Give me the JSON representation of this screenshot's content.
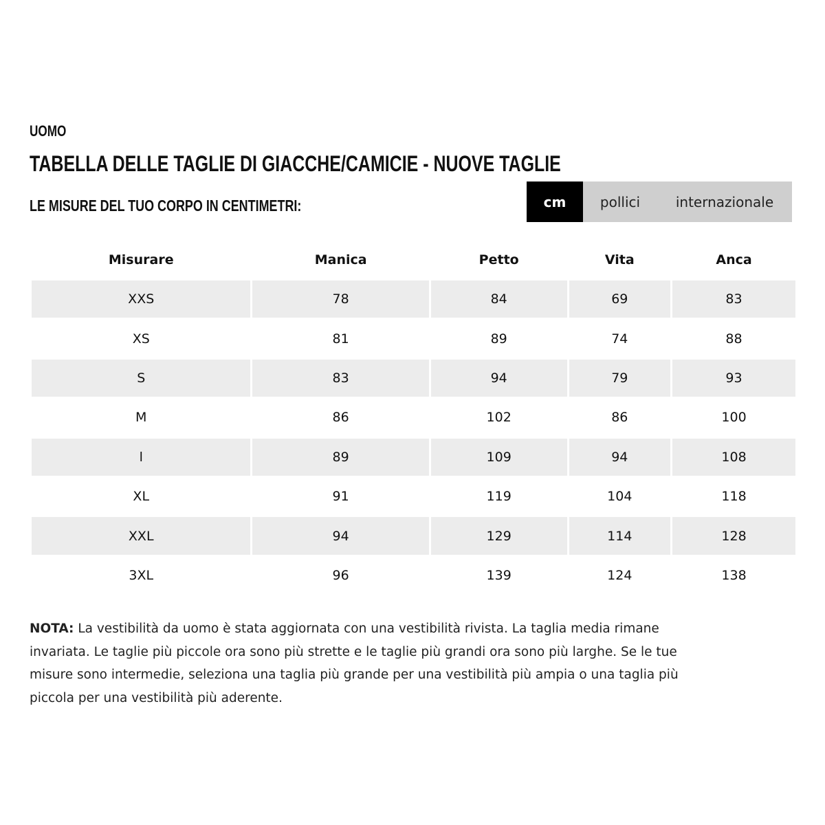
{
  "category": "UOMO",
  "title": "TABELLA DELLE TAGLIE DI GIACCHE/CAMICIE - NUOVE TAGLIE",
  "subtitle": "LE MISURE DEL TUO CORPO IN CENTIMETRI:",
  "unit_tabs": [
    {
      "label": "cm",
      "active": true
    },
    {
      "label": "pollici",
      "active": false
    },
    {
      "label": "internazionale",
      "active": false
    }
  ],
  "table": {
    "headers": [
      "Misurare",
      "Manica",
      "Petto",
      "Vita",
      "Anca"
    ],
    "rows": [
      [
        "XXS",
        "78",
        "84",
        "69",
        "83"
      ],
      [
        "XS",
        "81",
        "89",
        "74",
        "88"
      ],
      [
        "S",
        "83",
        "94",
        "79",
        "93"
      ],
      [
        "M",
        "86",
        "102",
        "86",
        "100"
      ],
      [
        "l",
        "89",
        "109",
        "94",
        "108"
      ],
      [
        "XL",
        "91",
        "119",
        "104",
        "118"
      ],
      [
        "XXL",
        "94",
        "129",
        "114",
        "128"
      ],
      [
        "3XL",
        "96",
        "139",
        "124",
        "138"
      ]
    ]
  },
  "note": {
    "label": "NOTA:",
    "text": " La vestibilità da uomo è stata aggiornata con una vestibilità rivista. La taglia media rimane invariata. Le taglie più piccole ora sono più strette e le taglie più grandi ora sono più larghe. Se le tue misure sono intermedie, seleziona una taglia più grande per una vestibilità più ampia o una taglia più piccola per una vestibilità più aderente."
  }
}
